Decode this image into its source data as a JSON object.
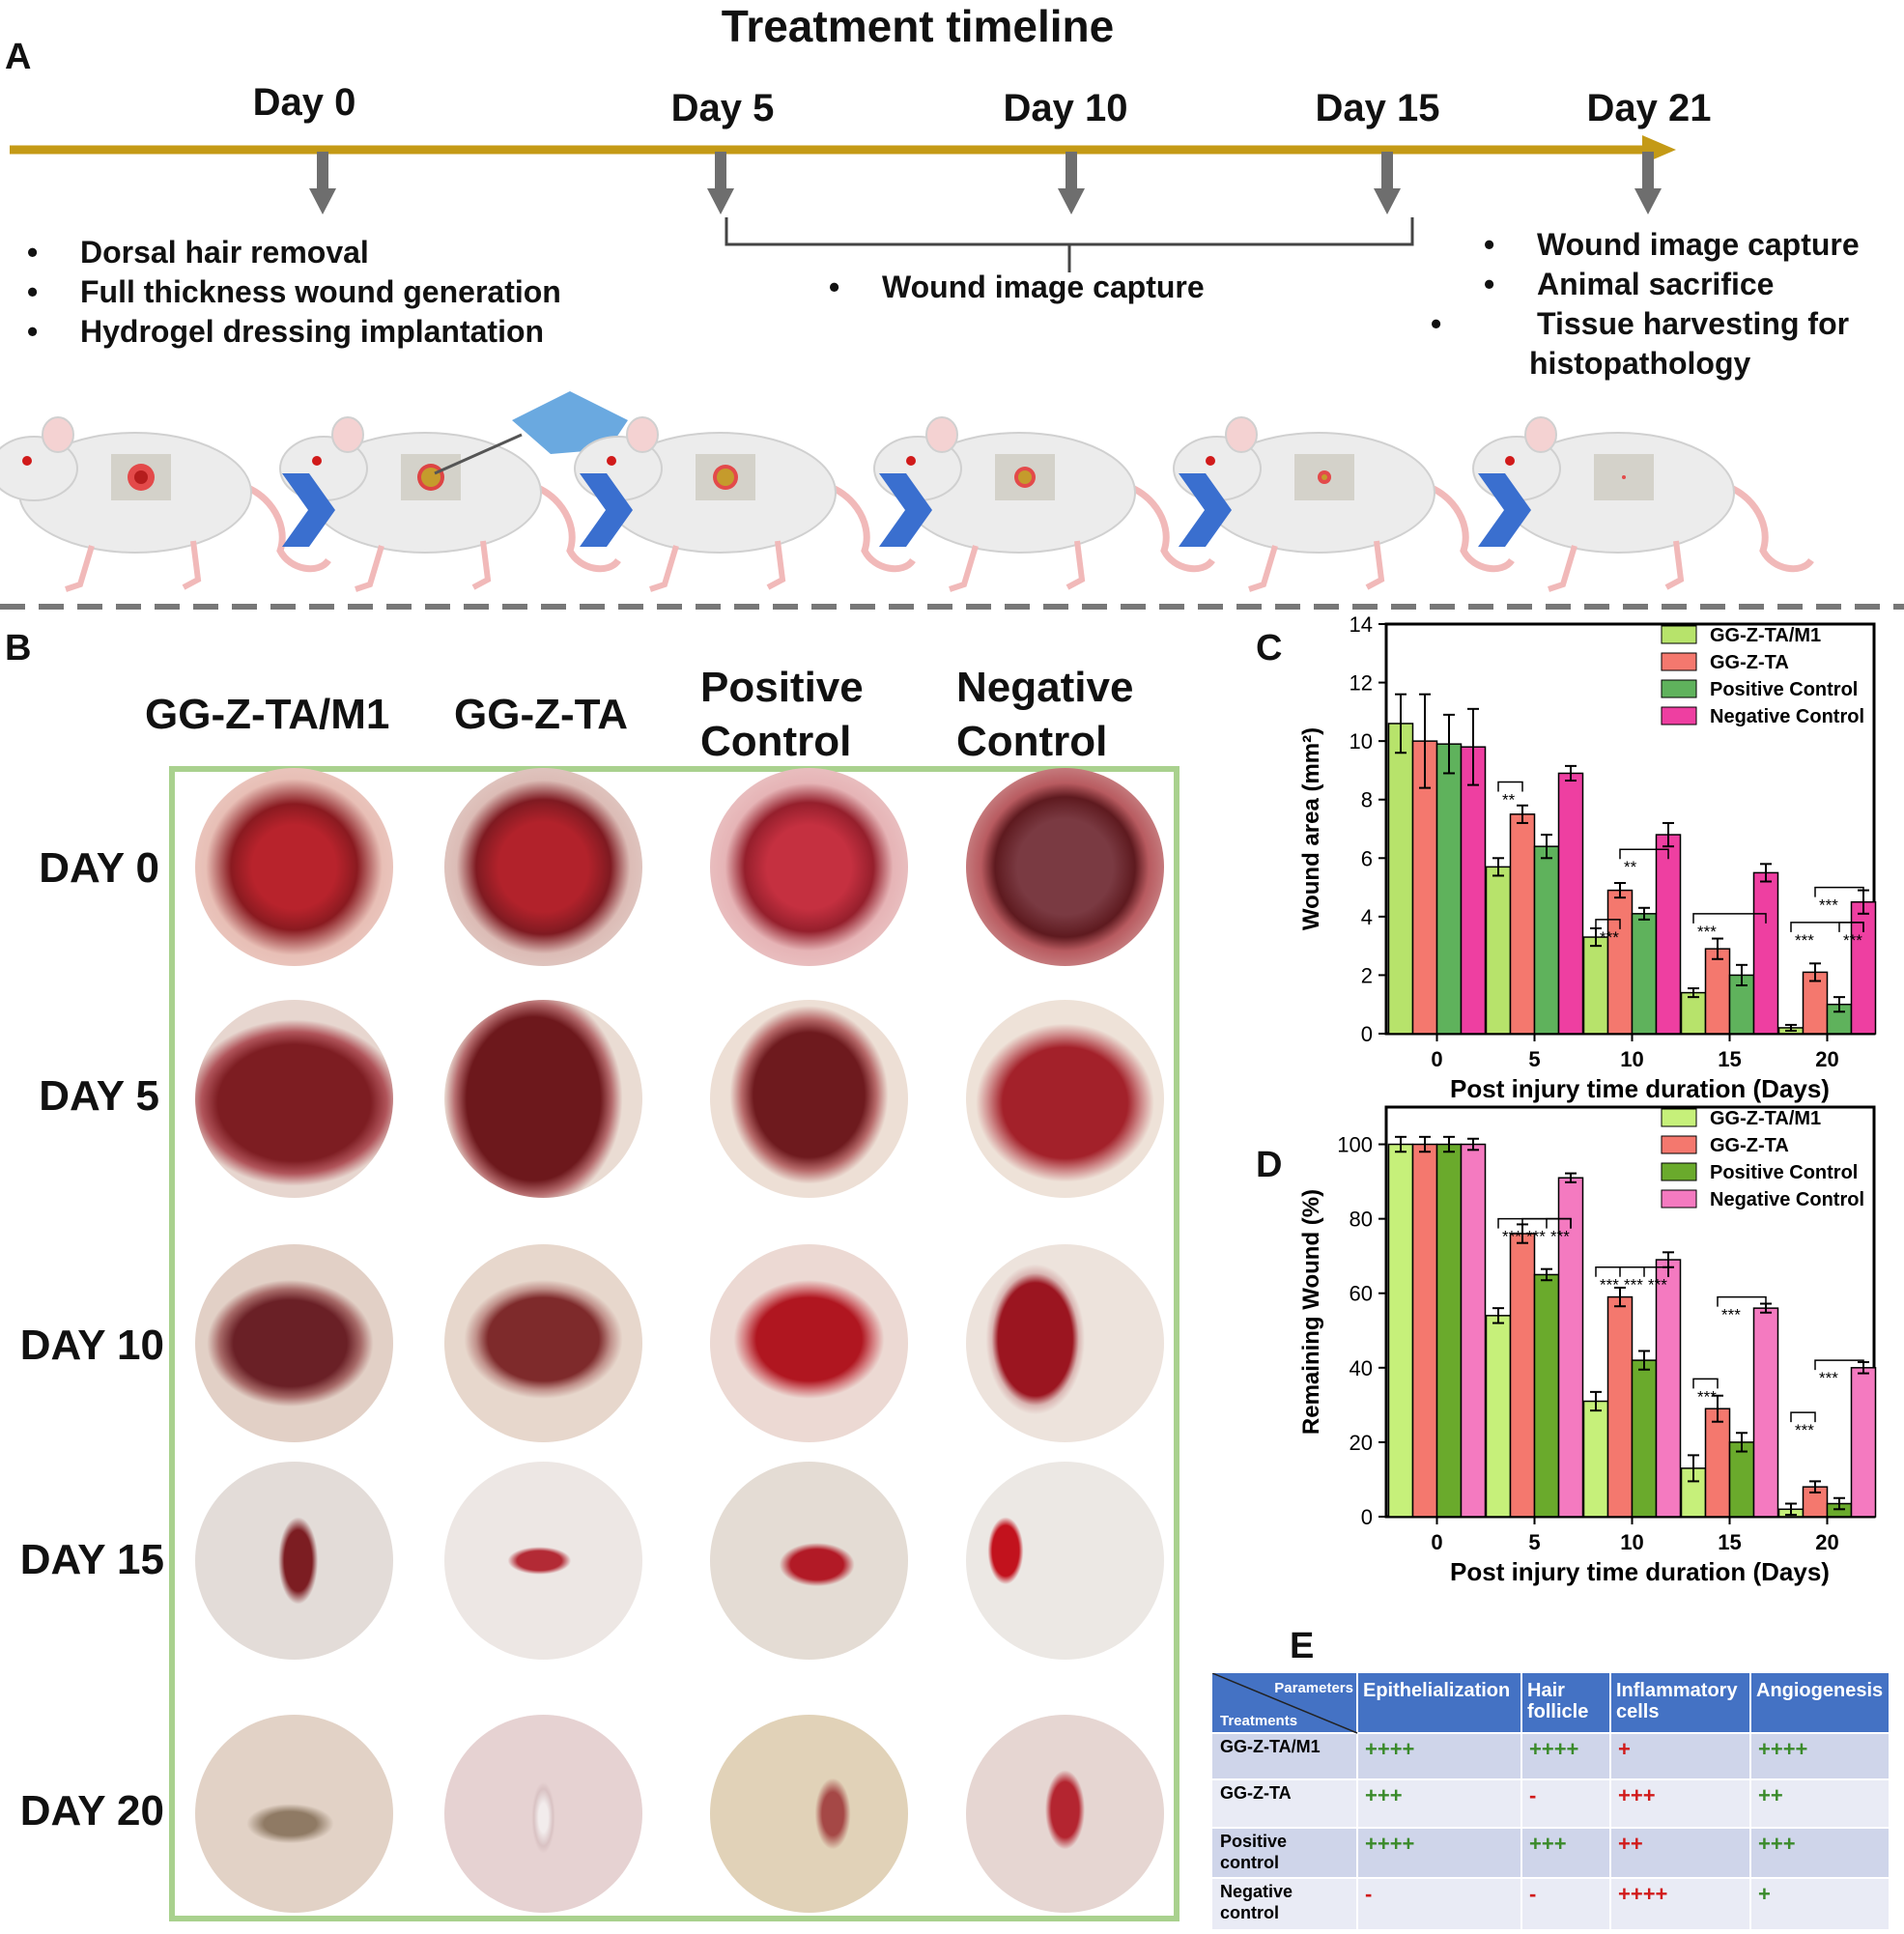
{
  "timeline": {
    "title": "Treatment timeline",
    "panel": "A",
    "days": [
      "Day 0",
      "Day 5",
      "Day 10",
      "Day 15",
      "Day 21"
    ],
    "day0_bullets": [
      "Dorsal hair removal",
      "Full thickness wound generation",
      "Hydrogel dressing implantation"
    ],
    "mid_bullet": "Wound image capture",
    "day21_bullets": [
      "Wound image capture",
      "Animal sacrifice",
      "Tissue harvesting for histopathology"
    ],
    "colors": {
      "axis": "#c49a16",
      "arrow": "#6e6e6e",
      "chevron": "#3a6fcf"
    }
  },
  "photos": {
    "panel": "B",
    "columns": [
      "GG-Z-TA/M1",
      "GG-Z-TA",
      "Positive Control",
      "Negative Control"
    ],
    "rows": [
      "DAY 0",
      "DAY 5",
      "DAY 10",
      "DAY 15",
      "DAY 20"
    ]
  },
  "chart_data": [
    {
      "panel": "C",
      "type": "bar",
      "categories": [
        "0",
        "5",
        "10",
        "15",
        "20"
      ],
      "xlabel": "Post injury time  duration (Days)",
      "ylabel": "Wound area (mm²)",
      "ylim": [
        0,
        14
      ],
      "yticks": [
        "0",
        "2",
        "4",
        "6",
        "8",
        "10",
        "12",
        "14"
      ],
      "legend_position": "top-right",
      "series": [
        {
          "name": "GG-Z-TA/M1",
          "color": "#b7e36b",
          "values": [
            10.6,
            5.7,
            3.3,
            1.4,
            0.2
          ],
          "errors": [
            1.0,
            0.3,
            0.3,
            0.15,
            0.1
          ]
        },
        {
          "name": "GG-Z-TA",
          "color": "#f4786e",
          "values": [
            10.0,
            7.5,
            4.9,
            2.9,
            2.1
          ],
          "errors": [
            1.6,
            0.3,
            0.25,
            0.35,
            0.3
          ]
        },
        {
          "name": "Positive Control",
          "color": "#5fb25c",
          "values": [
            9.9,
            6.4,
            4.1,
            2.0,
            1.0
          ],
          "errors": [
            1.0,
            0.4,
            0.2,
            0.35,
            0.25
          ]
        },
        {
          "name": "Negative Control",
          "color": "#ee3fa1",
          "values": [
            9.8,
            8.9,
            6.8,
            5.5,
            4.5
          ],
          "errors": [
            1.3,
            0.25,
            0.4,
            0.3,
            0.4
          ]
        }
      ],
      "significance": [
        "**",
        "**",
        "***",
        "***",
        "***",
        "***",
        "***"
      ]
    },
    {
      "panel": "D",
      "type": "bar",
      "categories": [
        "0",
        "5",
        "10",
        "15",
        "20"
      ],
      "xlabel": "Post injury time duration (Days)",
      "ylabel": "Remaining Wound (%)",
      "ylim": [
        0,
        110
      ],
      "yticks": [
        "0",
        "20",
        "40",
        "60",
        "80",
        "100"
      ],
      "legend_position": "top-right",
      "series": [
        {
          "name": "GG-Z-TA/M1",
          "color": "#c6f07a",
          "values": [
            100,
            54,
            31,
            13,
            2
          ],
          "errors": [
            2,
            2,
            2.5,
            3.5,
            1.5
          ]
        },
        {
          "name": "GG-Z-TA",
          "color": "#f4786e",
          "values": [
            100,
            76,
            59,
            29,
            8
          ],
          "errors": [
            2,
            2.5,
            2.5,
            3.5,
            1.5
          ]
        },
        {
          "name": "Positive Control",
          "color": "#6aaa2c",
          "values": [
            100,
            65,
            42,
            20,
            3.5
          ],
          "errors": [
            2,
            1.5,
            2.5,
            2.5,
            1.5
          ]
        },
        {
          "name": "Negative Control",
          "color": "#f47ac0",
          "values": [
            100,
            91,
            69,
            56,
            40
          ],
          "errors": [
            1.5,
            1.2,
            2,
            1.2,
            1.5
          ]
        }
      ],
      "significance": [
        "***",
        "***",
        "***",
        "***",
        "***",
        "***",
        "***",
        "***",
        "***",
        "***"
      ]
    }
  ],
  "table": {
    "panel": "E",
    "corner_top": "Parameters",
    "corner_bottom": "Treatments",
    "headers": [
      "Epithelialization",
      "Hair follicle",
      "Inflammatory cells",
      "Angiogenesis"
    ],
    "rows": [
      {
        "treatment": "GG-Z-TA/M1",
        "cells": [
          "++++",
          "++++",
          "+",
          "++++"
        ],
        "colors": [
          "#3a8a2a",
          "#3a8a2a",
          "#d11a1a",
          "#3a8a2a"
        ]
      },
      {
        "treatment": "GG-Z-TA",
        "cells": [
          "+++",
          "-",
          "+++",
          "++"
        ],
        "colors": [
          "#3a8a2a",
          "#d11a1a",
          "#d11a1a",
          "#3a8a2a"
        ]
      },
      {
        "treatment": "Positive control",
        "cells": [
          "++++",
          "+++",
          "++",
          "+++"
        ],
        "colors": [
          "#3a8a2a",
          "#3a8a2a",
          "#d11a1a",
          "#3a8a2a"
        ]
      },
      {
        "treatment": "Negative control",
        "cells": [
          "-",
          "-",
          "++++",
          "+"
        ],
        "colors": [
          "#d11a1a",
          "#d11a1a",
          "#d11a1a",
          "#3a8a2a"
        ]
      }
    ],
    "header_color": "#4472c4",
    "row_colors": [
      "#cfd5ea",
      "#e9ebf5"
    ]
  }
}
